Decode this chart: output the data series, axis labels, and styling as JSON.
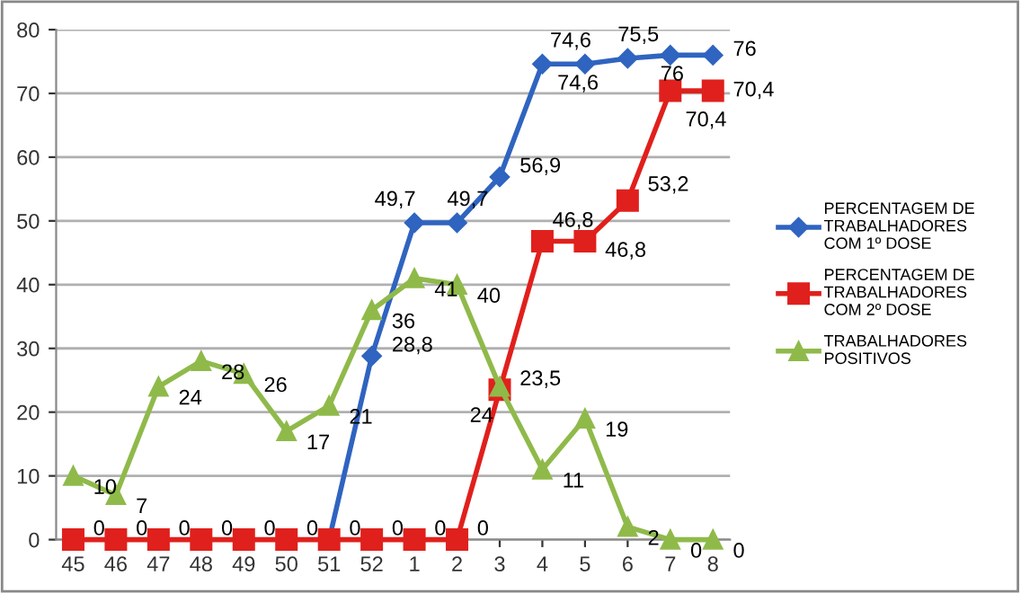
{
  "chart_data": {
    "type": "line",
    "categories": [
      "45",
      "46",
      "47",
      "48",
      "49",
      "50",
      "51",
      "52",
      "1",
      "2",
      "3",
      "4",
      "5",
      "6",
      "7",
      "8"
    ],
    "series": [
      {
        "name": "PERCENTAGEM DE TRABALHADORES COM 1º DOSE",
        "color": "#2f64c0",
        "marker": "diamond",
        "values": [
          null,
          null,
          null,
          null,
          null,
          null,
          0,
          28.8,
          49.7,
          49.7,
          56.9,
          74.6,
          74.6,
          75.5,
          76,
          76
        ],
        "value_labels": [
          null,
          null,
          null,
          null,
          null,
          null,
          null,
          "28,8",
          "49,7",
          "49,7",
          "56,9",
          "74,6",
          "74,6",
          "75,5",
          "76",
          "76"
        ]
      },
      {
        "name": "PERCENTAGEM DE TRABALHADORES COM 2º DOSE",
        "color": "#e0201c",
        "marker": "square",
        "values": [
          0,
          0,
          0,
          0,
          0,
          0,
          0,
          0,
          0,
          0,
          23.5,
          46.8,
          46.8,
          53.2,
          70.4,
          70.4
        ],
        "value_labels": [
          "0",
          "0",
          "0",
          "0",
          "0",
          "0",
          "0",
          "0",
          "0",
          "0",
          "23,5",
          "46,8",
          "46,8",
          "53,2",
          "70,4",
          "70,4"
        ]
      },
      {
        "name": "TRABALHADORES POSITIVOS",
        "color": "#8fba4a",
        "marker": "triangle",
        "values": [
          10,
          7,
          24,
          28,
          26,
          17,
          21,
          36,
          41,
          40,
          24,
          11,
          19,
          2,
          0,
          0
        ],
        "value_labels": [
          "10",
          "7",
          "24",
          "28",
          "26",
          "17",
          "21",
          "36",
          "41",
          "40",
          "24",
          "11",
          "19",
          "2",
          "0",
          "0"
        ]
      }
    ],
    "ylim": [
      0,
      80
    ],
    "yticks": [
      0,
      10,
      20,
      30,
      40,
      50,
      60,
      70,
      80
    ],
    "grid": "y",
    "legend": "right",
    "line_style": "solid"
  }
}
